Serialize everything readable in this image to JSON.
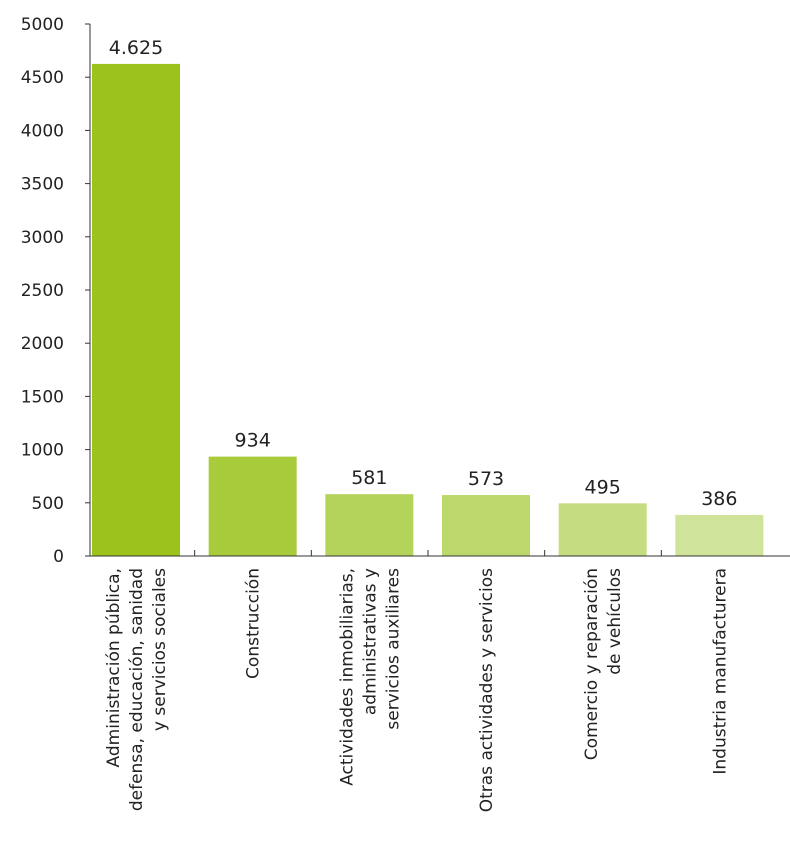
{
  "chart_data": {
    "type": "bar",
    "title": "",
    "xlabel": "",
    "ylabel": "",
    "ylim": [
      0,
      5000
    ],
    "yticks": [
      0,
      500,
      1000,
      1500,
      2000,
      2500,
      3000,
      3500,
      4000,
      4500,
      5000
    ],
    "grid": false,
    "categories": [
      [
        "Administración pública,",
        "defensa, educación, sanidad",
        "y servicios sociales"
      ],
      [
        "Construcción"
      ],
      [
        "Actividades inmobiliarias,",
        "administrativas y",
        "servicios auxiliares"
      ],
      [
        "Otras actividades y servicios"
      ],
      [
        "Comercio y reparación",
        "de vehículos"
      ],
      [
        "Industria manufacturera"
      ]
    ],
    "values": [
      4625,
      934,
      581,
      573,
      495,
      386
    ],
    "value_labels": [
      "4.625",
      "934",
      "581",
      "573",
      "495",
      "386"
    ],
    "colors": [
      "#9bc31c",
      "#a8cb3b",
      "#b4d35a",
      "#bcd86b",
      "#c5dd80",
      "#cfe49a"
    ]
  }
}
